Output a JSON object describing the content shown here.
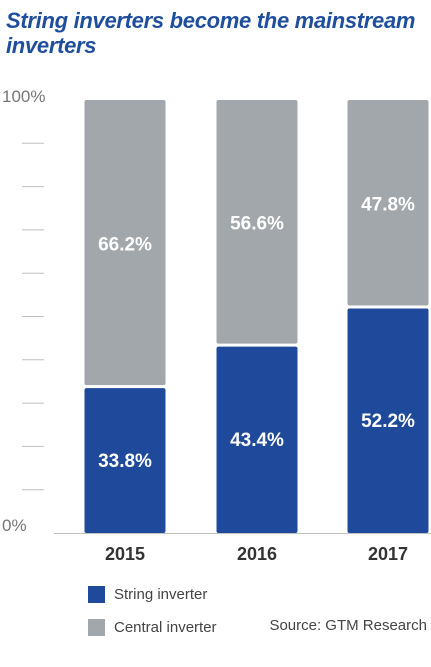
{
  "chart_data": {
    "type": "bar",
    "stacked": true,
    "title": "String inverters become the mainstream inverters",
    "categories": [
      "2015",
      "2016",
      "2017"
    ],
    "series": [
      {
        "name": "String inverter",
        "values": [
          33.8,
          43.4,
          52.2
        ],
        "labels": [
          "33.8%",
          "43.4%",
          "52.2%"
        ],
        "color": "#1f4a9c"
      },
      {
        "name": "Central inverter",
        "values": [
          66.2,
          56.6,
          47.8
        ],
        "labels": [
          "66.2%",
          "56.6%",
          "47.8%"
        ],
        "color": "#a1a7ab"
      }
    ],
    "ylim": [
      0,
      100
    ],
    "yticks": {
      "top": "100%",
      "bottom": "0%"
    },
    "grid": false,
    "legend": "bottom-left",
    "source": "Source: GTM Research"
  }
}
